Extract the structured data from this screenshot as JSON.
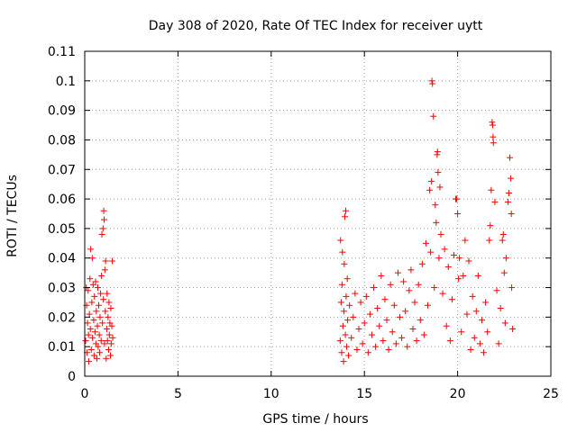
{
  "chart_data": {
    "type": "scatter",
    "title": "Day 308 of 2020, Rate Of TEC Index for receiver uytt",
    "xlabel": "GPS time / hours",
    "ylabel": "ROTI / TECUs",
    "xlim": [
      0,
      25
    ],
    "ylim": [
      0,
      0.11
    ],
    "xticks": [
      0,
      5,
      10,
      15,
      20,
      25
    ],
    "xtick_labels": [
      "0",
      "5",
      "10",
      "15",
      "20",
      "25"
    ],
    "yticks": [
      0,
      0.01,
      0.02,
      0.03,
      0.04,
      0.05,
      0.06,
      0.07,
      0.08,
      0.09,
      0.1,
      0.11
    ],
    "ytick_labels": [
      "0",
      "0.01",
      "0.02",
      "0.03",
      "0.04",
      "0.05",
      "0.06",
      "0.07",
      "0.08",
      "0.09",
      "0.1",
      "0.11"
    ],
    "grid": true,
    "marker": "+",
    "marker_color": "#ff0000",
    "series": [
      {
        "values": [
          [
            0.05,
            0.012
          ],
          [
            0.08,
            0.03
          ],
          [
            0.1,
            0.024
          ],
          [
            0.12,
            0.008
          ],
          [
            0.15,
            0.018
          ],
          [
            0.18,
            0.029
          ],
          [
            0.2,
            0.014
          ],
          [
            0.22,
            0.005
          ],
          [
            0.25,
            0.021
          ],
          [
            0.28,
            0.033
          ],
          [
            0.3,
            0.016
          ],
          [
            0.32,
            0.043
          ],
          [
            0.35,
            0.009
          ],
          [
            0.38,
            0.025
          ],
          [
            0.4,
            0.04
          ],
          [
            0.42,
            0.013
          ],
          [
            0.45,
            0.031
          ],
          [
            0.48,
            0.019
          ],
          [
            0.5,
            0.007
          ],
          [
            0.52,
            0.027
          ],
          [
            0.55,
            0.015
          ],
          [
            0.58,
            0.032
          ],
          [
            0.6,
            0.011
          ],
          [
            0.62,
            0.022
          ],
          [
            0.65,
            0.006
          ],
          [
            0.68,
            0.017
          ],
          [
            0.7,
            0.03
          ],
          [
            0.72,
            0.01
          ],
          [
            0.75,
            0.024
          ],
          [
            0.78,
            0.014
          ],
          [
            0.8,
            0.008
          ],
          [
            0.82,
            0.02
          ],
          [
            0.85,
            0.028
          ],
          [
            0.88,
            0.012
          ],
          [
            0.9,
            0.034
          ],
          [
            0.92,
            0.048
          ],
          [
            0.95,
            0.018
          ],
          [
            0.98,
            0.05
          ],
          [
            1.0,
            0.026
          ],
          [
            1.02,
            0.056
          ],
          [
            1.04,
            0.053
          ],
          [
            1.06,
            0.011
          ],
          [
            1.08,
            0.036
          ],
          [
            1.1,
            0.022
          ],
          [
            1.12,
            0.039
          ],
          [
            1.15,
            0.006
          ],
          [
            1.18,
            0.016
          ],
          [
            1.2,
            0.028
          ],
          [
            1.22,
            0.012
          ],
          [
            1.25,
            0.02
          ],
          [
            1.28,
            0.009
          ],
          [
            1.3,
            0.025
          ],
          [
            1.32,
            0.014
          ],
          [
            1.35,
            0.018
          ],
          [
            1.38,
            0.007
          ],
          [
            1.4,
            0.023
          ],
          [
            1.42,
            0.011
          ],
          [
            1.45,
            0.017
          ],
          [
            1.48,
            0.039
          ],
          [
            1.5,
            0.013
          ],
          [
            13.7,
            0.012
          ],
          [
            13.72,
            0.046
          ],
          [
            13.75,
            0.025
          ],
          [
            13.78,
            0.008
          ],
          [
            13.8,
            0.031
          ],
          [
            13.82,
            0.042
          ],
          [
            13.85,
            0.017
          ],
          [
            13.88,
            0.005
          ],
          [
            13.9,
            0.022
          ],
          [
            13.92,
            0.038
          ],
          [
            13.95,
            0.054
          ],
          [
            13.98,
            0.014
          ],
          [
            14.0,
            0.056
          ],
          [
            14.02,
            0.027
          ],
          [
            14.05,
            0.01
          ],
          [
            14.08,
            0.033
          ],
          [
            14.1,
            0.019
          ],
          [
            14.15,
            0.007
          ],
          [
            14.2,
            0.024
          ],
          [
            14.3,
            0.013
          ],
          [
            14.4,
            0.02
          ],
          [
            14.5,
            0.028
          ],
          [
            14.6,
            0.009
          ],
          [
            14.7,
            0.016
          ],
          [
            14.8,
            0.025
          ],
          [
            14.9,
            0.011
          ],
          [
            15.0,
            0.018
          ],
          [
            15.1,
            0.027
          ],
          [
            15.2,
            0.008
          ],
          [
            15.3,
            0.021
          ],
          [
            15.4,
            0.014
          ],
          [
            15.5,
            0.03
          ],
          [
            15.6,
            0.01
          ],
          [
            15.7,
            0.023
          ],
          [
            15.8,
            0.017
          ],
          [
            15.9,
            0.034
          ],
          [
            16.0,
            0.012
          ],
          [
            16.1,
            0.026
          ],
          [
            16.2,
            0.019
          ],
          [
            16.3,
            0.009
          ],
          [
            16.4,
            0.031
          ],
          [
            16.5,
            0.015
          ],
          [
            16.6,
            0.024
          ],
          [
            16.7,
            0.011
          ],
          [
            16.8,
            0.035
          ],
          [
            16.9,
            0.02
          ],
          [
            17.0,
            0.013
          ],
          [
            17.1,
            0.032
          ],
          [
            17.2,
            0.022
          ],
          [
            17.3,
            0.01
          ],
          [
            17.4,
            0.029
          ],
          [
            17.5,
            0.036
          ],
          [
            17.6,
            0.016
          ],
          [
            17.7,
            0.025
          ],
          [
            17.8,
            0.012
          ],
          [
            17.9,
            0.031
          ],
          [
            18.0,
            0.019
          ],
          [
            18.1,
            0.038
          ],
          [
            18.2,
            0.014
          ],
          [
            18.3,
            0.045
          ],
          [
            18.4,
            0.024
          ],
          [
            18.5,
            0.063
          ],
          [
            18.55,
            0.042
          ],
          [
            18.6,
            0.066
          ],
          [
            18.62,
            0.1
          ],
          [
            18.65,
            0.099
          ],
          [
            18.7,
            0.088
          ],
          [
            18.75,
            0.03
          ],
          [
            18.8,
            0.058
          ],
          [
            18.85,
            0.052
          ],
          [
            18.9,
            0.075
          ],
          [
            18.92,
            0.076
          ],
          [
            18.95,
            0.069
          ],
          [
            19.0,
            0.04
          ],
          [
            19.05,
            0.064
          ],
          [
            19.1,
            0.048
          ],
          [
            19.2,
            0.028
          ],
          [
            19.3,
            0.043
          ],
          [
            19.4,
            0.017
          ],
          [
            19.5,
            0.037
          ],
          [
            19.6,
            0.012
          ],
          [
            19.7,
            0.026
          ],
          [
            19.8,
            0.041
          ],
          [
            19.9,
            0.06
          ],
          [
            19.95,
            0.06
          ],
          [
            20.0,
            0.055
          ],
          [
            20.05,
            0.033
          ],
          [
            20.1,
            0.04
          ],
          [
            20.2,
            0.015
          ],
          [
            20.3,
            0.034
          ],
          [
            20.4,
            0.046
          ],
          [
            20.5,
            0.021
          ],
          [
            20.6,
            0.039
          ],
          [
            20.7,
            0.009
          ],
          [
            20.8,
            0.027
          ],
          [
            20.9,
            0.013
          ],
          [
            21.0,
            0.022
          ],
          [
            21.1,
            0.034
          ],
          [
            21.2,
            0.011
          ],
          [
            21.3,
            0.019
          ],
          [
            21.4,
            0.008
          ],
          [
            21.5,
            0.025
          ],
          [
            21.6,
            0.015
          ],
          [
            21.7,
            0.046
          ],
          [
            21.75,
            0.051
          ],
          [
            21.8,
            0.063
          ],
          [
            21.85,
            0.086
          ],
          [
            21.88,
            0.085
          ],
          [
            21.9,
            0.081
          ],
          [
            21.92,
            0.079
          ],
          [
            22.0,
            0.059
          ],
          [
            22.1,
            0.029
          ],
          [
            22.2,
            0.011
          ],
          [
            22.3,
            0.023
          ],
          [
            22.4,
            0.046
          ],
          [
            22.45,
            0.048
          ],
          [
            22.5,
            0.035
          ],
          [
            22.55,
            0.018
          ],
          [
            22.6,
            0.04
          ],
          [
            22.7,
            0.059
          ],
          [
            22.75,
            0.062
          ],
          [
            22.8,
            0.074
          ],
          [
            22.85,
            0.067
          ],
          [
            22.88,
            0.055
          ],
          [
            22.9,
            0.03
          ],
          [
            22.95,
            0.016
          ]
        ]
      }
    ]
  }
}
